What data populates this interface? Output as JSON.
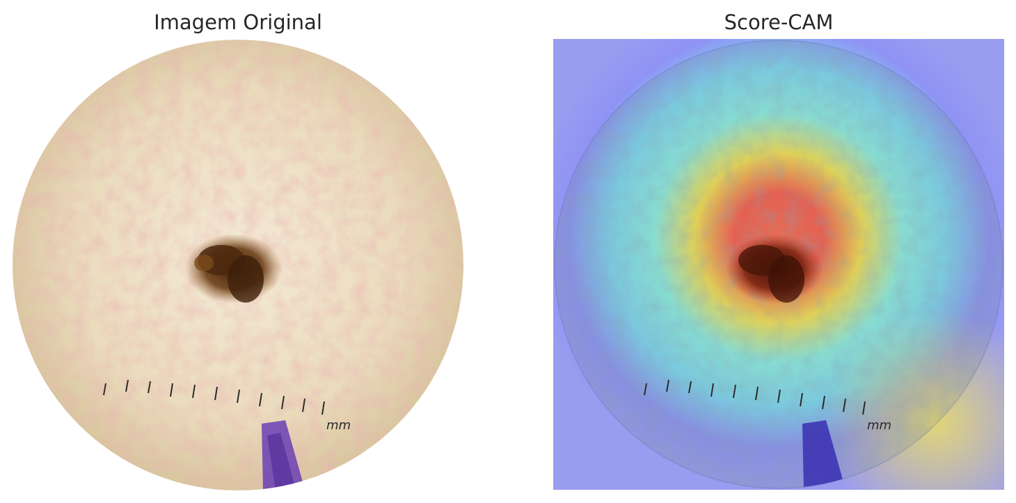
{
  "panels": [
    {
      "title": "Imagem Original"
    },
    {
      "title": "Score-CAM"
    }
  ],
  "scale_label": "mm",
  "colors": {
    "skin": "#efe2c8",
    "skin_dark": "#d7c3a0",
    "lesion": "#5a3414",
    "pen_ink": "#6a3fb5",
    "heatmap_red": "#ff4b3a",
    "heatmap_yellow": "#f6e04a",
    "heatmap_cyan": "#7ff0f0",
    "heatmap_blue": "#8e8ef7"
  }
}
